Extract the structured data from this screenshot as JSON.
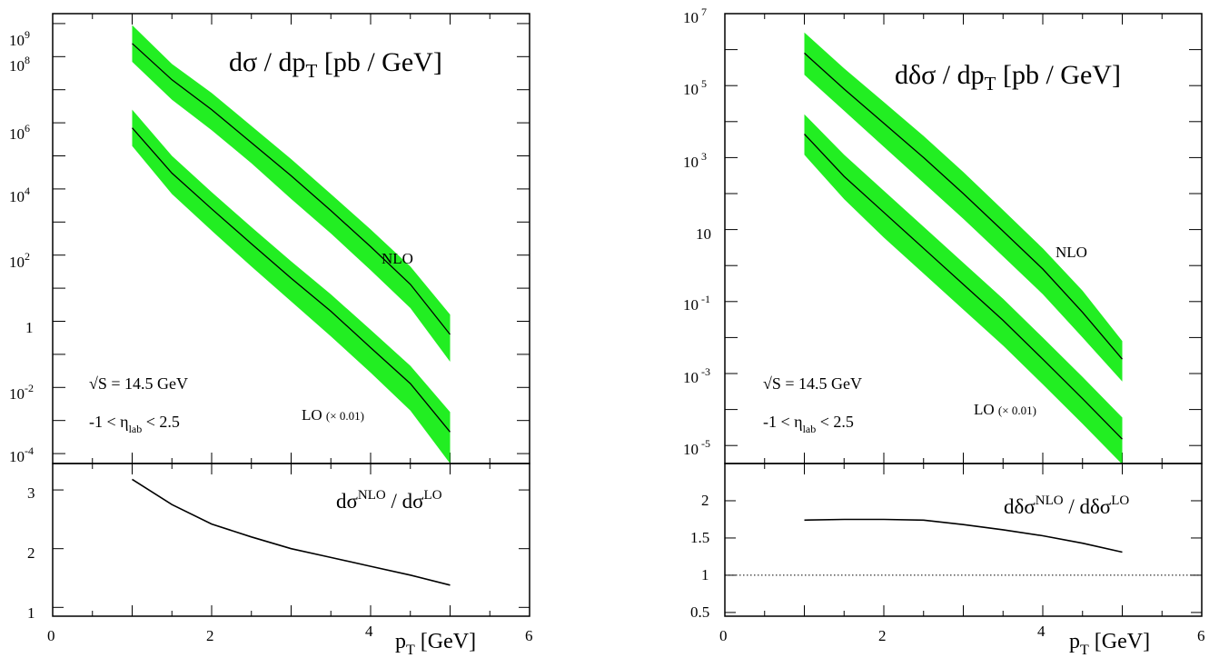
{
  "colors": {
    "band": "#22ee22",
    "line": "#000000",
    "reference_line": "#000000"
  },
  "chart_data": [
    {
      "panel": "left",
      "type": "line",
      "title": "dσ / dp_T [pb / GeV]",
      "annotations": {
        "sqrt_s": "S = 14.5 GeV",
        "eta_range": "-1 < η_lab < 2.5"
      },
      "xlabel": "p_T [GeV]",
      "xlim": [
        0,
        6
      ],
      "xticks": [
        "0",
        "2",
        "4",
        "6"
      ],
      "ylim_log10": [
        -4.3,
        9.3
      ],
      "yscale": "log",
      "ytick_labels": [
        "10^-4",
        "10^-2",
        "1",
        "10^2",
        "10^4",
        "10^6",
        "10^8",
        "10^9"
      ],
      "x": [
        1.0,
        1.5,
        2.0,
        2.5,
        3.0,
        3.5,
        4.0,
        4.5,
        5.0
      ],
      "series": [
        {
          "name": "NLO",
          "central": [
            250000000.0,
            20000000.0,
            2500000.0,
            250000.0,
            25000.0,
            2200.0,
            180.0,
            13.0,
            0.4
          ],
          "band_low": [
            70000000.0,
            5000000.0,
            600000.0,
            60000.0,
            5000.0,
            450.0,
            35.0,
            2.5,
            0.06
          ],
          "band_high": [
            900000000.0,
            60000000.0,
            8000000.0,
            800000.0,
            80000.0,
            7000.0,
            600.0,
            45.0,
            1.6
          ]
        },
        {
          "name": "LO (× 0.01)",
          "central": [
            700000.0,
            30000.0,
            2500.0,
            220.0,
            20.0,
            2.0,
            0.16,
            0.013,
            0.00045
          ],
          "band_low": [
            200000.0,
            7000.0,
            550.0,
            45.0,
            4.0,
            0.35,
            0.028,
            0.002,
            5e-05
          ],
          "band_high": [
            2500000.0,
            100000.0,
            8000.0,
            700.0,
            65.0,
            6.5,
            0.55,
            0.045,
            0.0018
          ]
        }
      ],
      "ratio": {
        "label": "dσ^NLO / dσ^LO",
        "ylim": [
          0.85,
          3.45
        ],
        "yticks": [
          1,
          2,
          3
        ],
        "ytick_labels": [
          "1",
          "2",
          "3"
        ],
        "x": [
          1.0,
          1.5,
          2.0,
          2.5,
          3.0,
          3.5,
          4.0,
          4.5,
          5.0
        ],
        "values": [
          3.18,
          2.75,
          2.42,
          2.2,
          2.0,
          1.85,
          1.7,
          1.55,
          1.38
        ]
      }
    },
    {
      "panel": "right",
      "type": "line",
      "title": "dδσ / dp_T [pb / GeV]",
      "annotations": {
        "sqrt_s": "S = 14.5 GeV",
        "eta_range": "-1 < η_lab < 2.5"
      },
      "xlabel": "p_T [GeV]",
      "xlim": [
        0,
        6
      ],
      "xticks": [
        "0",
        "2",
        "4",
        "6"
      ],
      "ylim_log10": [
        -5.5,
        7.0
      ],
      "yscale": "log",
      "ytick_labels": [
        "10^-5",
        "10^-3",
        "10^-1",
        "10",
        "10^3",
        "10^5",
        "10^7"
      ],
      "x": [
        1.0,
        1.5,
        2.0,
        2.5,
        3.0,
        3.5,
        4.0,
        4.5,
        5.0
      ],
      "series": [
        {
          "name": "NLO",
          "central": [
            800000.0,
            80000.0,
            9000.0,
            1000.0,
            100.0,
            9.0,
            0.8,
            0.05,
            0.0025
          ],
          "band_low": [
            200000.0,
            20000.0,
            2000.0,
            200.0,
            20.0,
            1.8,
            0.16,
            0.01,
            0.0006
          ],
          "band_high": [
            3000000.0,
            300000.0,
            35000.0,
            4000.0,
            400.0,
            35.0,
            3.0,
            0.2,
            0.008
          ]
        },
        {
          "name": "LO (× 0.01)",
          "central": [
            4500.0,
            300.0,
            30.0,
            3.0,
            0.3,
            0.03,
            0.0025,
            0.0002,
            1.5e-05
          ],
          "band_low": [
            1200.0,
            70.0,
            6.0,
            0.6,
            0.06,
            0.006,
            0.0005,
            4e-05,
            3e-06
          ],
          "band_high": [
            16000.0,
            1200.0,
            120.0,
            12.0,
            1.2,
            0.12,
            0.01,
            0.0008,
            6e-05
          ]
        }
      ],
      "ratio": {
        "label": "dδσ^NLO / dδσ^LO",
        "ylim": [
          0.45,
          2.5
        ],
        "yticks": [
          0.5,
          1,
          1.5,
          2
        ],
        "ytick_labels": [
          "0.5",
          "1",
          "1.5",
          "2"
        ],
        "reference": 1,
        "x": [
          1.0,
          1.5,
          2.0,
          2.5,
          3.0,
          3.5,
          4.0,
          4.5,
          5.0
        ],
        "values": [
          1.74,
          1.75,
          1.75,
          1.74,
          1.68,
          1.61,
          1.53,
          1.43,
          1.31
        ]
      }
    }
  ]
}
